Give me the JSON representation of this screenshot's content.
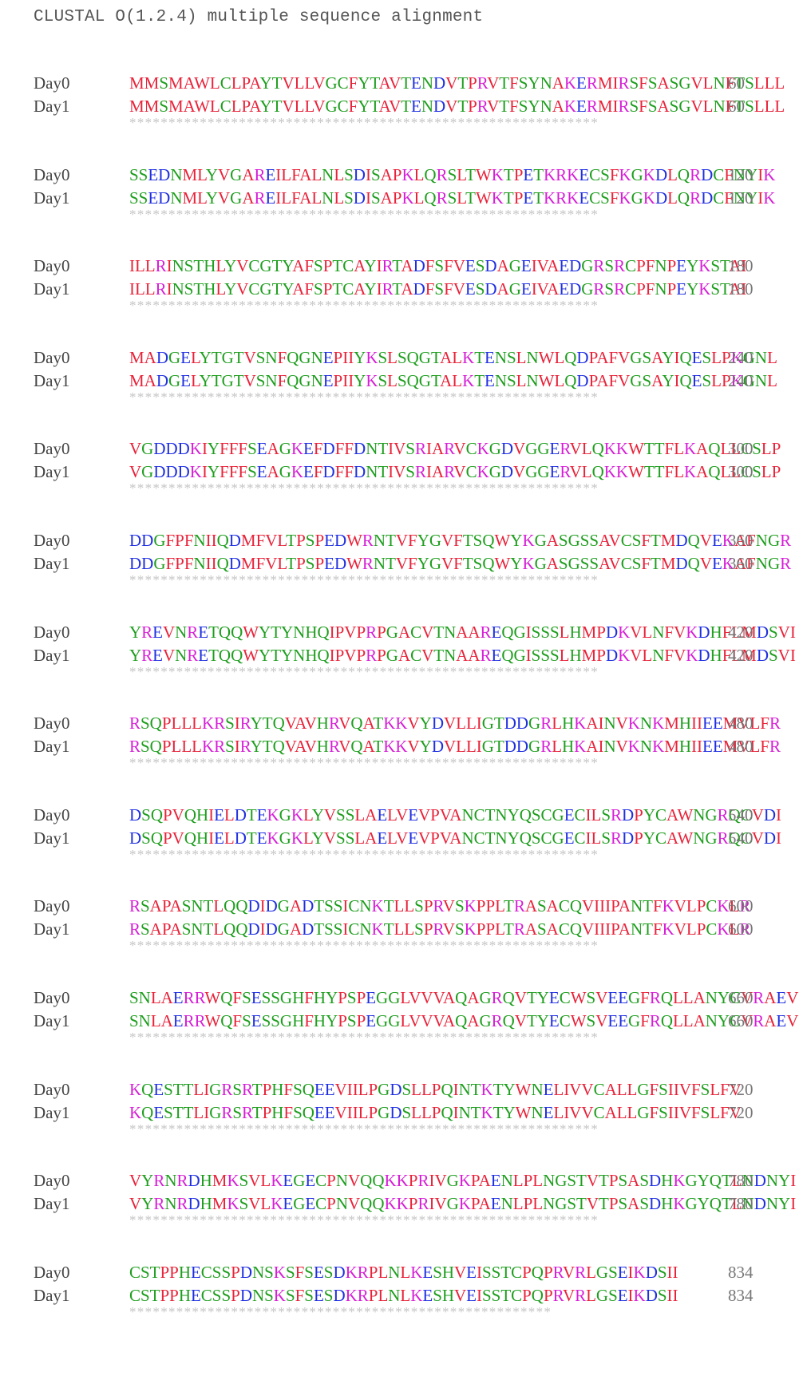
{
  "header": "CLUSTAL O(1.2.4) multiple sequence alignment",
  "colors": {
    "hydrophobic": "#e8233a",
    "acidic": "#1f2fe0",
    "basic": "#d61fd6",
    "polar": "#1e9e1e",
    "consensus": "#c4c4c4"
  },
  "blocks": [
    {
      "seq0": "MMSMAWLCLPAYTVLLVGCFYTAVTENDVTPRVTFSYNAKERMIRSFSASGVLNFTSLLL",
      "seq1": "MMSMAWLCLPAYTVLLVGCFYTAVTENDVTPRVTFSYNAKERMIRSFSASGVLNFTSLLL",
      "pos0": "60",
      "pos1": "60",
      "cons": "************************************************************"
    },
    {
      "seq0": "SSEDNMLYVGAREILFALNLSDISAPKLQRSLTWKTPETKRKECSFKGKDLQRDCFNYIK",
      "seq1": "SSEDNMLYVGAREILFALNLSDISAPKLQRSLTWKTPETKRKECSFKGKDLQRDCFNYIK",
      "pos0": "120",
      "pos1": "120",
      "cons": "************************************************************"
    },
    {
      "seq0": "ILLRINSTHLYVCGTYAFSPTCAYIRTADFSFVESDAGEIVAEDGRSRCPFNPEYKSTAI",
      "seq1": "ILLRINSTHLYVCGTYAFSPTCAYIRTADFSFVESDAGEIVAEDGRSRCPFNPEYKSTAI",
      "pos0": "180",
      "pos1": "180",
      "cons": "************************************************************"
    },
    {
      "seq0": "MADGELYTGTVSNFQGNEPIIYKSLSQGTALKTENSLNWLQDPAFVGSAYIQESLPKGNL",
      "seq1": "MADGELYTGTVSNFQGNEPIIYKSLSQGTALKTENSLNWLQDPAFVGSAYIQESLPKGNL",
      "pos0": "240",
      "pos1": "240",
      "cons": "************************************************************"
    },
    {
      "seq0": "VGDDDKIYFFFSEAGKEFDFFDNTIVSRIARVCKGDVGGERVLQKKWTTFLKAQLLCSLP",
      "seq1": "VGDDDKIYFFFSEAGKEFDFFDNTIVSRIARVCKGDVGGERVLQKKWTTFLKAQLLCSLP",
      "pos0": "300",
      "pos1": "300",
      "cons": "************************************************************"
    },
    {
      "seq0": "DDGFPFNIIQDMFVLTPSPEDWRNTVFYGVFTSQWYKGASGSSAVCSFTMDQVEKAFNGR",
      "seq1": "DDGFPFNIIQDMFVLTPSPEDWRNTVFYGVFTSQWYKGASGSSAVCSFTMDQVEKAFNGR",
      "pos0": "360",
      "pos1": "360",
      "cons": "************************************************************"
    },
    {
      "seq0": "YREVNRETQQWYTYNHQIPVPRPGACVTNAAREQGISSSLHMPDKVLNFVKDHFLMDSVI",
      "seq1": "YREVNRETQQWYTYNHQIPVPRPGACVTNAAREQGISSSLHMPDKVLNFVKDHFLMDSVI",
      "pos0": "420",
      "pos1": "420",
      "cons": "************************************************************"
    },
    {
      "seq0": "RSQPLLLKRSIRYTQVAVHRVQATKKVYDVLLIGTDDGRLHKAINVKNKMHIIEEMVLFR",
      "seq1": "RSQPLLLKRSIRYTQVAVHRVQATKKVYDVLLIGTDDGRLHKAINVKNKMHIIEEMVLFR",
      "pos0": "480",
      "pos1": "480",
      "cons": "************************************************************"
    },
    {
      "seq0": "DSQPVQHIELDTEKGKLYVSSLAELVEVPVANCTNYQSCGECILSRDPYCAWNGRQCVDI",
      "seq1": "DSQPVQHIELDTEKGKLYVSSLAELVEVPVANCTNYQSCGECILSRDPYCAWNGRQCVDI",
      "pos0": "540",
      "pos1": "540",
      "cons": "************************************************************"
    },
    {
      "seq0": "RSAPASNTLQQDIDGADTSSICNKTLLSPRVSKPPLTRASACQVIIIPANTFKVLPCKLR",
      "seq1": "RSAPASNTLQQDIDGADTSSICNKTLLSPRVSKPPLTRASACQVIIIPANTFKVLPCKLR",
      "pos0": "600",
      "pos1": "600",
      "cons": "************************************************************"
    },
    {
      "seq0": "SNLAERRWQFSESSGHFHYPSPEGGLVVVAQAGRQVTYECWSVEEGFRQLLANYCVRAEV",
      "seq1": "SNLAERRWQFSESSGHFHYPSPEGGLVVVAQAGRQVTYECWSVEEGFRQLLANYCVRAEV",
      "pos0": "660",
      "pos1": "660",
      "cons": "************************************************************"
    },
    {
      "seq0": "KQESTTLIGRSRTPHFSQEEVIILPGDSLLPQINTKTYWNELIVVCALLGFSIIVFSLFV",
      "seq1": "KQESTTLIGRSRTPHFSQEEVIILPGDSLLPQINTKTYWNELIVVCALLGFSIIVFSLFV",
      "pos0": "720",
      "pos1": "720",
      "cons": "************************************************************"
    },
    {
      "seq0": "VYRNRDHMKSVLKEGECPNVQQKKPRIVGKPAENLPLNGSTVTPSASDHKGYQTLNDNYI",
      "seq1": "VYRNRDHMKSVLKEGECPNVQQKKPRIVGKPAENLPLNGSTVTPSASDHKGYQTLNDNYI",
      "pos0": "780",
      "pos1": "780",
      "cons": "************************************************************"
    },
    {
      "seq0": "CSTPPHECSSPDNSKSFSESDKRPLNLKESHVEISSTCPQPRVRLGSEIKDSII",
      "seq1": "CSTPPHECSSPDNSKSFSESDKRPLNLKESHVEISSTCPQPRVRLGSEIKDSII",
      "pos0": "834",
      "pos1": "834",
      "cons": "******************************************************"
    }
  ],
  "names": [
    "Day0",
    "Day1"
  ]
}
